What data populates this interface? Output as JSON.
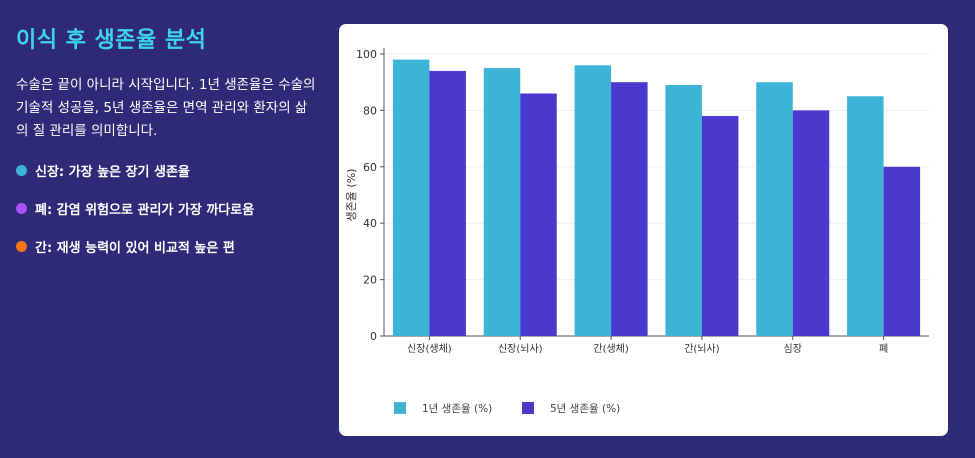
{
  "heading": "이식 후 생존율 분석",
  "description": "수술은 끝이 아니라 시작입니다. 1년 생존율은 수술의 기술적 성공을, 5년 생존율은 면역 관리와 환자의 삶의 질 관리를 의미합니다.",
  "bullets": [
    {
      "text": "신장: 가장 높은 장기 생존율",
      "color": "#3db3d6"
    },
    {
      "text": "폐: 감염 위험으로 관리가 가장 까다로움",
      "color": "#a855f7"
    },
    {
      "text": "간: 재생 능력이 있어 비교적 높은 편",
      "color": "#f97316"
    }
  ],
  "chart_data": {
    "type": "bar",
    "title": "",
    "xlabel": "",
    "ylabel": "생존율 (%)",
    "ylim": [
      0,
      100
    ],
    "yticks": [
      0,
      20,
      40,
      60,
      80,
      100
    ],
    "grid": true,
    "legend_position": "bottom-left",
    "categories": [
      "신장(생체)",
      "신장(뇌사)",
      "간(생체)",
      "간(뇌사)",
      "심장",
      "폐"
    ],
    "series": [
      {
        "name": "1년 생존율 (%)",
        "color": "#3db3d6",
        "values": [
          98,
          95,
          96,
          89,
          90,
          85
        ]
      },
      {
        "name": "5년 생존율 (%)",
        "color": "#4a38cf",
        "values": [
          94,
          86,
          90,
          78,
          80,
          60
        ]
      }
    ]
  }
}
